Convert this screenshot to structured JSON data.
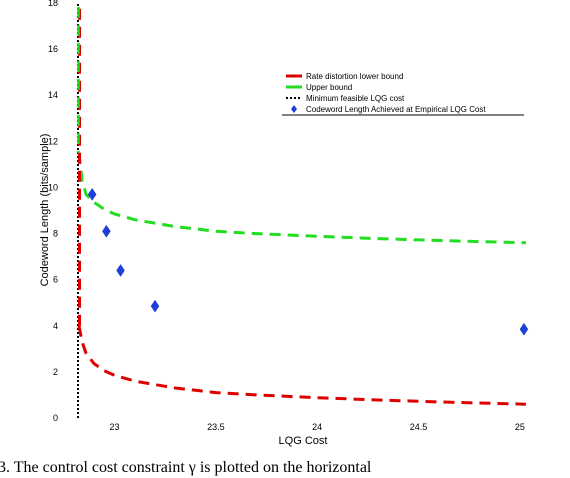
{
  "chart_data": {
    "type": "line",
    "title": "",
    "xlabel": "LQG Cost",
    "ylabel": "Codeword Length (bits/sample)",
    "xlim": [
      22.82,
      25.05
    ],
    "ylim": [
      0,
      18
    ],
    "xticks": [
      23,
      23.5,
      24,
      24.5,
      25
    ],
    "xtick_labels": [
      "23",
      "23.5",
      "24",
      "24.5",
      "25"
    ],
    "yticks": [
      0,
      2,
      4,
      6,
      8,
      10,
      12,
      14,
      16,
      18
    ],
    "ytick_labels": [
      "0",
      "2",
      "4",
      "6",
      "8",
      "10",
      "12",
      "14",
      "16",
      "18"
    ],
    "grid": false,
    "legend_position": "top-right",
    "colors": {
      "lower": "#dd0000",
      "upper": "#22dd22",
      "min": "#000000",
      "markers": "#1f3fd8"
    },
    "series": [
      {
        "name": "Rate distortion lower bound",
        "style": "dashed",
        "x": [
          22.825,
          22.84,
          22.86,
          22.9,
          22.95,
          23.0,
          23.1,
          23.2,
          23.3,
          23.4,
          23.5,
          23.7,
          24.0,
          24.3,
          24.6,
          24.8,
          25.03
        ],
        "y": [
          4.0,
          3.3,
          2.8,
          2.35,
          2.05,
          1.85,
          1.6,
          1.45,
          1.3,
          1.2,
          1.1,
          1.0,
          0.88,
          0.78,
          0.7,
          0.65,
          0.6
        ]
      },
      {
        "name": "Upper bound",
        "style": "dashed",
        "x": [
          22.825,
          22.84,
          22.86,
          22.9,
          22.95,
          23.0,
          23.1,
          23.2,
          23.3,
          23.4,
          23.5,
          23.7,
          24.0,
          24.3,
          24.6,
          24.8,
          25.03
        ],
        "y": [
          11.5,
          10.3,
          9.7,
          9.35,
          9.05,
          8.85,
          8.6,
          8.45,
          8.3,
          8.2,
          8.1,
          8.0,
          7.88,
          7.78,
          7.7,
          7.65,
          7.6
        ]
      },
      {
        "name": "Minimum feasible LQG cost",
        "style": "dotted",
        "x": [
          22.82,
          22.82
        ],
        "y": [
          0,
          18
        ]
      },
      {
        "name": "Codeword Length Achieved at Empirical LQG Cost",
        "style": "markers",
        "x": [
          22.89,
          22.96,
          23.03,
          23.2,
          25.02
        ],
        "y": [
          9.7,
          8.1,
          6.4,
          4.85,
          3.85
        ]
      }
    ]
  },
  "caption": "3.    The control cost constraint  γ is plotted on the horizontal"
}
